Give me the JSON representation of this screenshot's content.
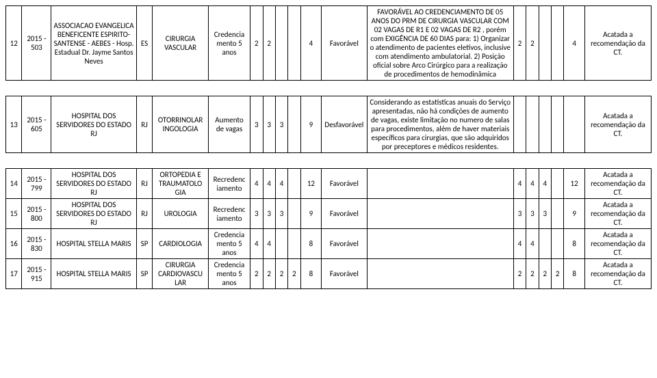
{
  "columns": {
    "widths_pct": [
      2.3,
      4.2,
      12.2,
      2.3,
      8.0,
      6.0,
      1.8,
      1.8,
      1.8,
      1.8,
      3.0,
      6.5,
      21.0,
      1.8,
      1.8,
      1.8,
      1.8,
      3.0,
      9.5
    ]
  },
  "rows": [
    {
      "n": "12",
      "proc": "2015 - 503",
      "inst": "ASSOCIACAO EVANGELICA BENEFICENTE ESPIRITO-SANTENSE - AEBES - Hosp. Estadual Dr. Jayme Santos Neves",
      "uf": "ES",
      "esp": "CIRURGIA VASCULAR",
      "tipo": "Credencia mento 5 anos",
      "c1": "2",
      "c2": "2",
      "c3": "",
      "c4": "",
      "tot1": "4",
      "par1": "Favorável",
      "obs": "FAVORÁVEL AO CREDENCIAMENTO DE 05 ANOS DO PRM DE CIRURGIA VASCULAR COM 02 VAGAS DE R1 E 02 VAGAS DE R2 , porém com EXIGÊNCIA DE 60 DIAS para: 1) Organizar o atendimento de pacientes eletivos, inclusive com atendimento ambulatorial. 2) Posição oficial sobre Arco Cirúrgico para a realização de procedimentos de hemodinâmica",
      "d1": "2",
      "d2": "2",
      "d3": "",
      "d4": "",
      "tot2": "4",
      "dec": "Acatada a recomendação da CT."
    },
    {
      "n": "13",
      "proc": "2015 - 605",
      "inst": "HOSPITAL DOS SERVIDORES DO ESTADO RJ",
      "uf": "RJ",
      "esp": "OTORRINOLAR INGOLOGIA",
      "tipo": "Aumento de vagas",
      "c1": "3",
      "c2": "3",
      "c3": "3",
      "c4": "",
      "tot1": "9",
      "par1": "Desfavorável",
      "obs": "Considerando as estatísticas anuais do Serviço apresentadas, não há condições de aumento de vagas, existe limitação no numero de salas para procedimentos, além de haver materiais específicos para cirurgias, que são adquiridos por preceptores e médicos residentes.",
      "d1": "",
      "d2": "",
      "d3": "",
      "d4": "",
      "tot2": "",
      "dec": "Acatada a recomendação da CT."
    },
    {
      "n": "14",
      "proc": "2015 - 799",
      "inst": "HOSPITAL DOS SERVIDORES DO ESTADO RJ",
      "uf": "RJ",
      "esp": "ORTOPEDIA E TRAUMATOLO GIA",
      "tipo": "Recredenc iamento",
      "c1": "4",
      "c2": "4",
      "c3": "4",
      "c4": "",
      "tot1": "12",
      "par1": "Favorável",
      "obs": "",
      "d1": "4",
      "d2": "4",
      "d3": "4",
      "d4": "",
      "tot2": "12",
      "dec": "Acatada a recomendação da CT."
    },
    {
      "n": "15",
      "proc": "2015 - 800",
      "inst": "HOSPITAL DOS SERVIDORES DO ESTADO RJ",
      "uf": "RJ",
      "esp": "UROLOGIA",
      "tipo": "Recredenc iamento",
      "c1": "3",
      "c2": "3",
      "c3": "3",
      "c4": "",
      "tot1": "9",
      "par1": "Favorável",
      "obs": "",
      "d1": "3",
      "d2": "3",
      "d3": "3",
      "d4": "",
      "tot2": "9",
      "dec": "Acatada a recomendação da CT."
    },
    {
      "n": "16",
      "proc": "2015 - 830",
      "inst": "HOSPITAL STELLA MARIS",
      "uf": "SP",
      "esp": "CARDIOLOGIA",
      "tipo": "Credencia mento 5 anos",
      "c1": "4",
      "c2": "4",
      "c3": "",
      "c4": "",
      "tot1": "8",
      "par1": "Favorável",
      "obs": "",
      "d1": "4",
      "d2": "4",
      "d3": "",
      "d4": "",
      "tot2": "8",
      "dec": "Acatada a recomendação da CT."
    },
    {
      "n": "17",
      "proc": "2015 - 915",
      "inst": "HOSPITAL STELLA MARIS",
      "uf": "SP",
      "esp": "CIRURGIA CARDIOVASCU LAR",
      "tipo": "Credencia mento 5 anos",
      "c1": "2",
      "c2": "2",
      "c3": "2",
      "c4": "2",
      "tot1": "8",
      "par1": "Favorável",
      "obs": "",
      "d1": "2",
      "d2": "2",
      "d3": "2",
      "d4": "2",
      "tot2": "8",
      "dec": "Acatada a recomendação da CT."
    }
  ]
}
